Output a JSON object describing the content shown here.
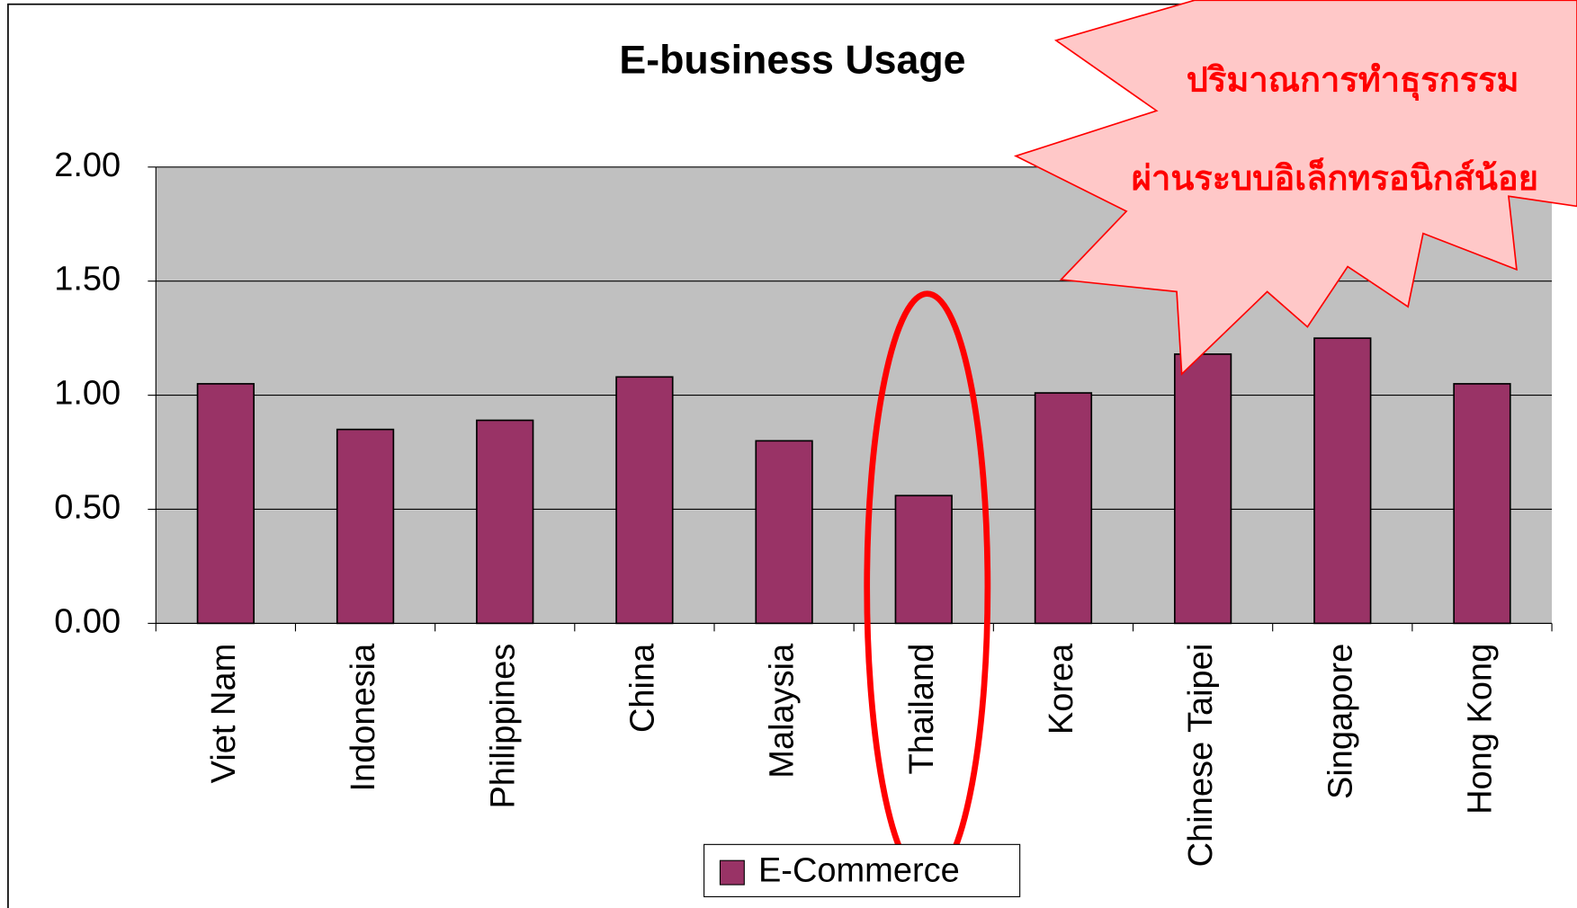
{
  "chart_data": {
    "type": "bar",
    "title": "E-business Usage",
    "categories": [
      "Viet Nam",
      "Indonesia",
      "Philippines",
      "China",
      "Malaysia",
      "Thailand",
      "Korea",
      "Chinese Taipei",
      "Singapore",
      "Hong Kong"
    ],
    "series": [
      {
        "name": "E-Commerce",
        "color": "#993366",
        "values": [
          1.05,
          0.85,
          0.89,
          1.08,
          0.8,
          0.56,
          1.01,
          1.18,
          1.25,
          1.05
        ]
      }
    ],
    "ylim": [
      0,
      2
    ],
    "yticks": [
      {
        "value": 0,
        "label": "0.00"
      },
      {
        "value": 0.5,
        "label": "0.50"
      },
      {
        "value": 1,
        "label": "1.00"
      },
      {
        "value": 1.5,
        "label": "1.50"
      },
      {
        "value": 2,
        "label": "2.00"
      }
    ],
    "grid": true,
    "legend": "bottom",
    "annotations": [
      "ปริมาณการทำธุรกรรม",
      "ผ่านระบบอิเล็กทรอนิกส์น้อย"
    ]
  }
}
